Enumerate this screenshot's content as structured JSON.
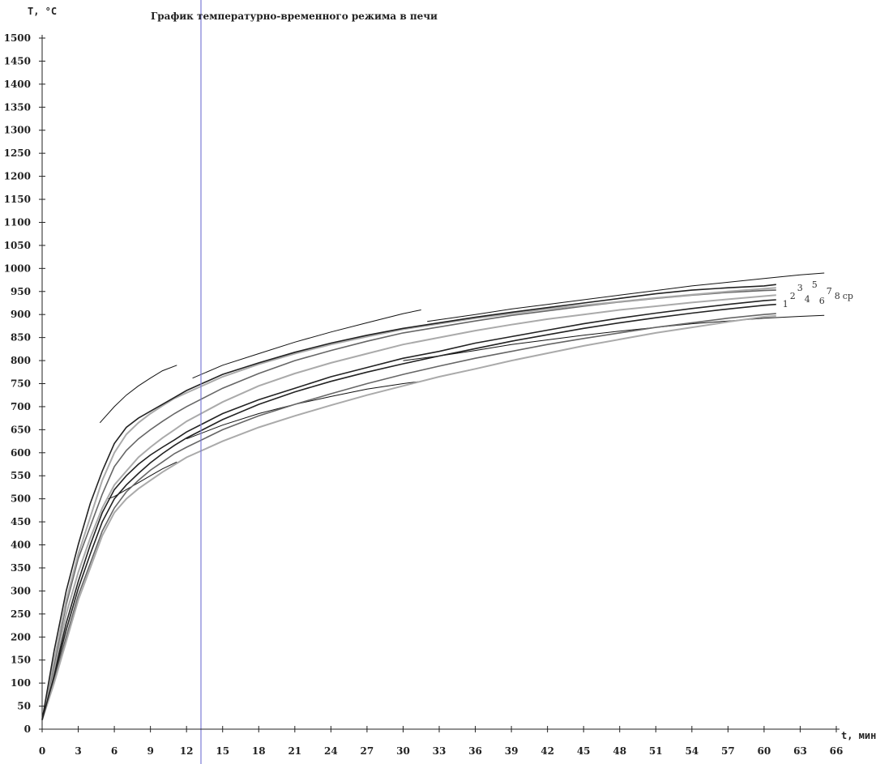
{
  "chart_data": {
    "type": "line",
    "title": "График температурно-временного режима в печи",
    "ylabel": "T, °C",
    "xlabel": "t, мин",
    "xlim": [
      0,
      66
    ],
    "ylim": [
      0,
      1500
    ],
    "x_ticks": [
      "0",
      "3",
      "6",
      "9",
      "12",
      "15",
      "18",
      "21",
      "24",
      "27",
      "30",
      "33",
      "36",
      "39",
      "42",
      "45",
      "48",
      "51",
      "54",
      "57",
      "60",
      "63",
      "66"
    ],
    "y_ticks": [
      "0",
      "50",
      "100",
      "150",
      "200",
      "250",
      "300",
      "350",
      "400",
      "450",
      "500",
      "550",
      "600",
      "650",
      "700",
      "750",
      "800",
      "850",
      "900",
      "950",
      "1000",
      "1050",
      "1100",
      "1150",
      "1200",
      "1250",
      "1300",
      "1350",
      "1400",
      "1450",
      "1500"
    ],
    "grid": false,
    "colors": {
      "dark": "#222222",
      "mid": "#666666",
      "light": "#aaaaaa",
      "marker": "#7b7bd6",
      "envelope": "#111111"
    },
    "vertical_marker_x": 13.2,
    "series": [
      {
        "name": "1",
        "color": "dark",
        "x": [
          0,
          1,
          2,
          3,
          4,
          5,
          6,
          7,
          8,
          9,
          10,
          11,
          12,
          15,
          18,
          21,
          24,
          27,
          30,
          33,
          36,
          39,
          42,
          45,
          48,
          51,
          54,
          57,
          60,
          61
        ],
        "y": [
          20,
          120,
          230,
          320,
          400,
          470,
          520,
          550,
          575,
          595,
          612,
          628,
          645,
          685,
          715,
          740,
          765,
          785,
          805,
          820,
          838,
          852,
          866,
          880,
          892,
          903,
          913,
          922,
          930,
          932
        ]
      },
      {
        "name": "2",
        "color": "light",
        "x": [
          0,
          1,
          2,
          3,
          4,
          5,
          6,
          7,
          8,
          9,
          10,
          11,
          12,
          15,
          18,
          21,
          24,
          27,
          30,
          33,
          36,
          39,
          42,
          45,
          48,
          51,
          54,
          57,
          60,
          61
        ],
        "y": [
          20,
          130,
          250,
          340,
          415,
          480,
          530,
          560,
          590,
          612,
          632,
          650,
          668,
          710,
          745,
          772,
          795,
          815,
          835,
          850,
          865,
          878,
          890,
          900,
          910,
          918,
          926,
          933,
          940,
          942
        ]
      },
      {
        "name": "3",
        "color": "mid",
        "x": [
          0,
          1,
          2,
          3,
          4,
          5,
          6,
          7,
          8,
          9,
          10,
          11,
          12,
          15,
          18,
          21,
          24,
          27,
          30,
          33,
          36,
          39,
          42,
          45,
          48,
          51,
          54,
          57,
          60,
          61
        ],
        "y": [
          20,
          140,
          270,
          370,
          440,
          510,
          570,
          605,
          630,
          650,
          668,
          685,
          700,
          740,
          772,
          800,
          822,
          842,
          860,
          873,
          886,
          898,
          908,
          918,
          927,
          935,
          942,
          948,
          952,
          953
        ]
      },
      {
        "name": "4",
        "color": "light",
        "x": [
          0,
          1,
          2,
          3,
          4,
          5,
          6,
          7,
          8,
          9,
          10,
          11,
          12,
          15,
          18,
          21,
          24,
          27,
          30,
          33,
          36,
          39,
          42,
          45,
          48,
          51,
          54,
          57,
          60,
          61
        ],
        "y": [
          20,
          150,
          280,
          380,
          460,
          540,
          600,
          640,
          665,
          685,
          702,
          718,
          730,
          765,
          792,
          815,
          835,
          852,
          868,
          880,
          892,
          902,
          912,
          920,
          928,
          936,
          943,
          950,
          956,
          958
        ]
      },
      {
        "name": "5",
        "color": "mid",
        "x": [
          0,
          1,
          2,
          3,
          4,
          5,
          6,
          7,
          8,
          9,
          10,
          11,
          12,
          15,
          18,
          21,
          24,
          27,
          30,
          33,
          36,
          39,
          42,
          45,
          48,
          51,
          54,
          57,
          60,
          61
        ],
        "y": [
          20,
          110,
          200,
          290,
          360,
          430,
          480,
          515,
          540,
          562,
          580,
          598,
          612,
          650,
          680,
          705,
          728,
          750,
          770,
          788,
          805,
          820,
          835,
          848,
          860,
          872,
          882,
          892,
          900,
          902
        ]
      },
      {
        "name": "6",
        "color": "dark",
        "x": [
          0,
          1,
          2,
          3,
          4,
          5,
          6,
          7,
          8,
          9,
          10,
          11,
          12,
          15,
          18,
          21,
          24,
          27,
          30,
          33,
          36,
          39,
          42,
          45,
          48,
          51,
          54,
          57,
          60,
          61
        ],
        "y": [
          20,
          170,
          300,
          400,
          490,
          560,
          620,
          655,
          675,
          690,
          705,
          720,
          735,
          770,
          795,
          818,
          838,
          855,
          870,
          882,
          894,
          905,
          915,
          925,
          935,
          945,
          953,
          958,
          962,
          965
        ]
      },
      {
        "name": "7",
        "color": "light",
        "x": [
          0,
          1,
          2,
          3,
          4,
          5,
          6,
          7,
          8,
          9,
          10,
          11,
          12,
          15,
          18,
          21,
          24,
          27,
          30,
          33,
          36,
          39,
          42,
          45,
          48,
          51,
          54,
          57,
          60,
          61
        ],
        "y": [
          20,
          100,
          190,
          280,
          350,
          420,
          470,
          500,
          522,
          540,
          558,
          574,
          590,
          625,
          655,
          680,
          703,
          725,
          745,
          765,
          782,
          800,
          816,
          832,
          846,
          860,
          872,
          884,
          895,
          897
        ]
      },
      {
        "name": "8",
        "color": "dark",
        "x": [
          0,
          1,
          2,
          3,
          4,
          5,
          6,
          7,
          8,
          9,
          10,
          11,
          12,
          15,
          18,
          21,
          24,
          27,
          30,
          33,
          36,
          39,
          42,
          45,
          48,
          51,
          54,
          57,
          60,
          61
        ],
        "y": [
          20,
          115,
          215,
          305,
          380,
          450,
          500,
          530,
          555,
          578,
          598,
          616,
          632,
          672,
          705,
          732,
          755,
          775,
          793,
          810,
          826,
          842,
          856,
          870,
          882,
          893,
          903,
          912,
          920,
          922
        ]
      }
    ],
    "envelopes": [
      {
        "x": [
          4.8,
          6,
          7,
          8,
          9,
          10,
          11.2
        ],
        "y": [
          665,
          700,
          725,
          745,
          762,
          778,
          790
        ]
      },
      {
        "x": [
          12.5,
          15,
          18,
          21,
          24,
          27,
          30,
          31.5
        ],
        "y": [
          762,
          790,
          815,
          840,
          862,
          882,
          902,
          910
        ]
      },
      {
        "x": [
          32,
          36,
          39,
          42,
          45,
          48,
          51,
          54,
          57,
          60,
          63,
          65
        ],
        "y": [
          885,
          900,
          912,
          922,
          932,
          942,
          952,
          962,
          970,
          978,
          986,
          990
        ]
      },
      {
        "x": [
          5.5,
          6,
          7,
          8,
          9,
          10,
          11.2
        ],
        "y": [
          500,
          505,
          520,
          535,
          550,
          565,
          580
        ]
      },
      {
        "x": [
          12,
          15,
          18,
          21,
          24,
          27,
          30,
          31.5
        ],
        "y": [
          630,
          660,
          685,
          705,
          722,
          738,
          750,
          755
        ]
      },
      {
        "x": [
          30,
          33,
          36,
          39,
          42,
          45,
          48,
          51,
          54,
          57,
          60,
          63,
          65
        ],
        "y": [
          800,
          810,
          822,
          835,
          845,
          855,
          864,
          872,
          880,
          886,
          892,
          896,
          898
        ]
      }
    ],
    "curve_labels": [
      "1",
      "2",
      "3",
      "4",
      "5",
      "6",
      "7",
      "8",
      "cp"
    ]
  }
}
